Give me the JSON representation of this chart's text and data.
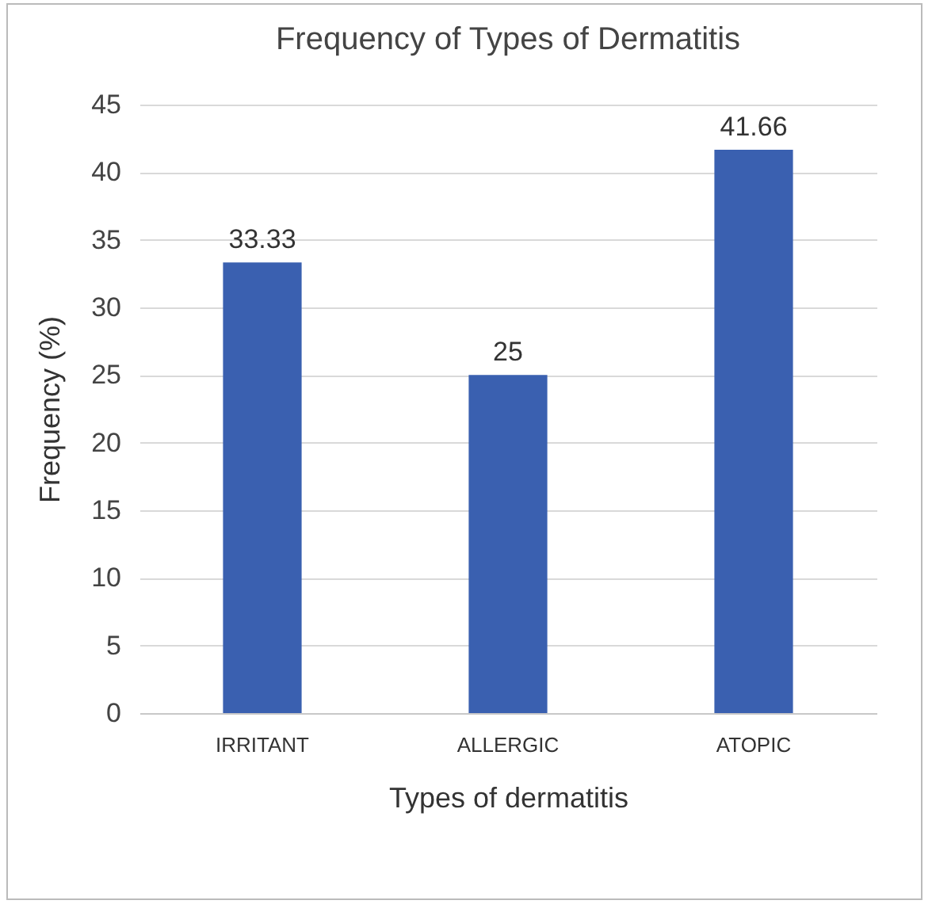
{
  "chart_data": {
    "type": "bar",
    "title": "Frequency of Types of Dermatitis",
    "xlabel": "Types of dermatitis",
    "ylabel": "Frequency (%)",
    "categories": [
      "IRRITANT",
      "ALLERGIC",
      "ATOPIC"
    ],
    "values": [
      33.33,
      25,
      41.66
    ],
    "color": "#3a60b0",
    "ylim": [
      0,
      45
    ],
    "yticks": [
      0,
      5,
      10,
      15,
      20,
      25,
      30,
      35,
      40,
      45
    ],
    "grid": "y",
    "data_labels": true
  }
}
